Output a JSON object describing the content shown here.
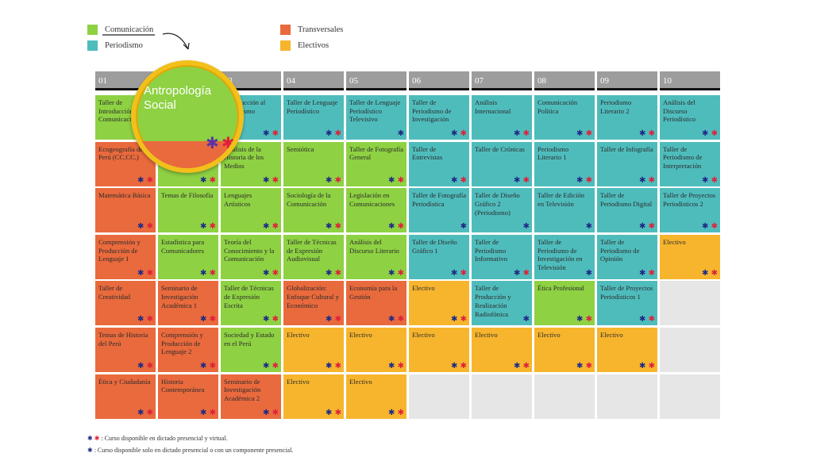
{
  "legend": {
    "items": [
      {
        "label": "Comunicación",
        "color": "#8ed143"
      },
      {
        "label": "Periodismo",
        "color": "#4fbcbc"
      },
      {
        "label": "Transversales",
        "color": "#e96a3d"
      },
      {
        "label": "Electivos",
        "color": "#f7b52d"
      }
    ]
  },
  "colors": {
    "C": "#8ed143",
    "P": "#4fbcbc",
    "T": "#e96a3d",
    "E": "#f7b52d",
    "X": "#e6e6e6",
    "star_blue": "#1e2a86",
    "star_red": "#e0203b"
  },
  "semesters": [
    {
      "label": "01",
      "cells": [
        {
          "name": "Taller de Introducción a las Comunicaciones",
          "cat": "C",
          "stars": 2
        },
        {
          "name": "Ecogeografía del Perú (CC.CC.)",
          "cat": "T",
          "stars": 2
        },
        {
          "name": "Matemática Básica",
          "cat": "T",
          "stars": 2
        },
        {
          "name": "Comprensión y Producción de Lenguaje 1",
          "cat": "T",
          "stars": 2
        },
        {
          "name": "Taller de Creatividad",
          "cat": "T",
          "stars": 2
        },
        {
          "name": "Temas de Historia del Perú",
          "cat": "T",
          "stars": 2
        },
        {
          "name": "Ética y Ciudadanía",
          "cat": "T",
          "stars": 2
        }
      ]
    },
    {
      "label": "02",
      "cells": [
        {
          "name": "Antropología Social",
          "cat": "C",
          "stars": 2
        },
        {
          "name": "Introducción",
          "cat": "C",
          "stars": 2
        },
        {
          "name": "Temas de Filosofía",
          "cat": "C",
          "stars": 2
        },
        {
          "name": "Estadística para Comunicadores",
          "cat": "C",
          "stars": 2
        },
        {
          "name": "Seminario de Investigación Académica 1",
          "cat": "T",
          "stars": 2
        },
        {
          "name": "Comprensión y Producción de Lenguaje 2",
          "cat": "T",
          "stars": 2
        },
        {
          "name": "Historia Contemporánea",
          "cat": "T",
          "stars": 2
        }
      ]
    },
    {
      "label": "03",
      "cells": [
        {
          "name": "Introducción al Periodismo",
          "cat": "P",
          "stars": 2
        },
        {
          "name": "Análisis de la Historia de los Medios",
          "cat": "C",
          "stars": 2
        },
        {
          "name": "Lenguajes Artísticos",
          "cat": "C",
          "stars": 2
        },
        {
          "name": "Teoría del Conocimiento y la Comunicación",
          "cat": "C",
          "stars": 2
        },
        {
          "name": "Taller de Técnicas de Expresión Escrita",
          "cat": "C",
          "stars": 2
        },
        {
          "name": "Sociedad y Estado en el Perú",
          "cat": "C",
          "stars": 2
        },
        {
          "name": "Seminario de Investigación Académica 2",
          "cat": "T",
          "stars": 2
        }
      ]
    },
    {
      "label": "04",
      "cells": [
        {
          "name": "Taller de Lenguaje Periodístico",
          "cat": "P",
          "stars": 2
        },
        {
          "name": "Semiótica",
          "cat": "C",
          "stars": 2
        },
        {
          "name": "Sociología de la Comunicación",
          "cat": "C",
          "stars": 2
        },
        {
          "name": "Taller de Técnicas de Expresión Audiovisual",
          "cat": "C",
          "stars": 2
        },
        {
          "name": "Globalización: Enfoque Cultural y Económico",
          "cat": "T",
          "stars": 2
        },
        {
          "name": "Electivo",
          "cat": "E",
          "stars": 2
        },
        {
          "name": "Electivo",
          "cat": "E",
          "stars": 2
        }
      ]
    },
    {
      "label": "05",
      "cells": [
        {
          "name": "Taller de Lenguaje Periodístico Televisivo",
          "cat": "P",
          "stars": 1
        },
        {
          "name": "Taller de Fotografía General",
          "cat": "C",
          "stars": 2
        },
        {
          "name": "Legislación en Comunicaciones",
          "cat": "C",
          "stars": 2
        },
        {
          "name": "Análisis del Discurso Literario",
          "cat": "C",
          "stars": 2
        },
        {
          "name": "Economía para la Gestión",
          "cat": "T",
          "stars": 2
        },
        {
          "name": "Electivo",
          "cat": "E",
          "stars": 2
        },
        {
          "name": "Electivo",
          "cat": "E",
          "stars": 2
        }
      ]
    },
    {
      "label": "06",
      "cells": [
        {
          "name": "Taller de Periodismo de Investigación",
          "cat": "P",
          "stars": 2
        },
        {
          "name": "Taller de Entrevistas",
          "cat": "P",
          "stars": 2
        },
        {
          "name": "Taller de Fotografía Periodística",
          "cat": "P",
          "stars": 1
        },
        {
          "name": "Taller de Diseño Gráfico 1",
          "cat": "P",
          "stars": 2
        },
        {
          "name": "Electivo",
          "cat": "E",
          "stars": 2
        },
        {
          "name": "Electivo",
          "cat": "E",
          "stars": 2
        },
        {
          "name": "",
          "cat": "X",
          "stars": 0
        }
      ]
    },
    {
      "label": "07",
      "cells": [
        {
          "name": "Análisis Internacional",
          "cat": "P",
          "stars": 2
        },
        {
          "name": "Taller de Crónicas",
          "cat": "P",
          "stars": 2
        },
        {
          "name": "Taller de Diseño Gráfico 2 (Periodismo)",
          "cat": "P",
          "stars": 1
        },
        {
          "name": "Taller de Periodismo Informativo",
          "cat": "P",
          "stars": 2
        },
        {
          "name": "Taller de Producción y Realización Radiofónica",
          "cat": "P",
          "stars": 1
        },
        {
          "name": "Electivo",
          "cat": "E",
          "stars": 2
        },
        {
          "name": "",
          "cat": "X",
          "stars": 0
        }
      ]
    },
    {
      "label": "08",
      "cells": [
        {
          "name": "Comunicación Política",
          "cat": "P",
          "stars": 2
        },
        {
          "name": "Periodismo Literario 1",
          "cat": "P",
          "stars": 2
        },
        {
          "name": "Taller de Edición en Televisión",
          "cat": "P",
          "stars": 1
        },
        {
          "name": "Taller de Periodismo de Investigación en Televisión",
          "cat": "P",
          "stars": 1
        },
        {
          "name": "Ética Profesional",
          "cat": "C",
          "stars": 2
        },
        {
          "name": "Electivo",
          "cat": "E",
          "stars": 2
        },
        {
          "name": "",
          "cat": "X",
          "stars": 0
        }
      ]
    },
    {
      "label": "09",
      "cells": [
        {
          "name": "Periodismo Literario 2",
          "cat": "P",
          "stars": 2
        },
        {
          "name": "Taller de Infografía",
          "cat": "P",
          "stars": 2
        },
        {
          "name": "Taller de Periodismo Digital",
          "cat": "P",
          "stars": 2
        },
        {
          "name": "Taller de Periodismo de Opinión",
          "cat": "P",
          "stars": 2
        },
        {
          "name": "Taller de Proyectos Periodísticos 1",
          "cat": "P",
          "stars": 2
        },
        {
          "name": "Electivo",
          "cat": "E",
          "stars": 2
        },
        {
          "name": "",
          "cat": "X",
          "stars": 0
        }
      ]
    },
    {
      "label": "10",
      "cells": [
        {
          "name": "Análisis del Discurso Periodístico",
          "cat": "P",
          "stars": 2
        },
        {
          "name": "Taller de Periodismo de Interpretación",
          "cat": "P",
          "stars": 2
        },
        {
          "name": "Taller de Proyectos Periodísticos 2",
          "cat": "P",
          "stars": 2
        },
        {
          "name": "Electivo",
          "cat": "E",
          "stars": 2
        },
        {
          "name": "",
          "cat": "X",
          "stars": 0
        },
        {
          "name": "",
          "cat": "X",
          "stars": 0
        },
        {
          "name": "",
          "cat": "X",
          "stars": 0
        }
      ]
    }
  ],
  "magnifier": {
    "text": "Antropología Social"
  },
  "notes": [
    {
      "stars": 2,
      "text": ": Curso disponible en dictado presencial y virtual."
    },
    {
      "stars": 1,
      "text": ": Curso disponible solo en dictado presencial o con un componente presencial."
    }
  ]
}
